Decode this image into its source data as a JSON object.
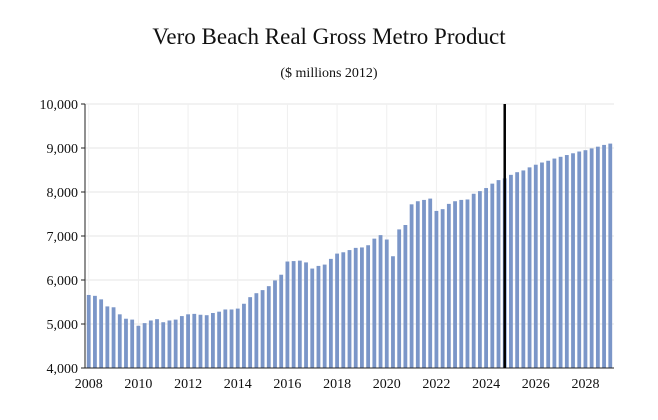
{
  "chart_data": {
    "type": "bar",
    "title": "Vero Beach Real Gross Metro Product",
    "subtitle": "($ millions 2012)",
    "xlabel": "",
    "ylabel": "",
    "ylim": [
      4000,
      10000
    ],
    "y_ticks": [
      4000,
      5000,
      6000,
      7000,
      8000,
      9000,
      10000
    ],
    "y_tick_labels": [
      "4,000",
      "5,000",
      "6,000",
      "7,000",
      "8,000",
      "9,000",
      "10,000"
    ],
    "x_tick_labels": [
      "2008",
      "2010",
      "2012",
      "2014",
      "2016",
      "2018",
      "2020",
      "2022",
      "2024",
      "2026",
      "2028"
    ],
    "x_start": 2008.0,
    "x_step": 0.25,
    "grid": true,
    "bar_color": "#7b96c8",
    "marker_line": {
      "x": 2024.75,
      "color": "#000000"
    },
    "values": [
      5660,
      5640,
      5560,
      5400,
      5380,
      5220,
      5120,
      5100,
      4960,
      5020,
      5080,
      5110,
      5040,
      5080,
      5100,
      5180,
      5220,
      5230,
      5210,
      5200,
      5250,
      5280,
      5330,
      5330,
      5350,
      5460,
      5610,
      5700,
      5770,
      5860,
      5990,
      6120,
      6420,
      6430,
      6440,
      6400,
      6260,
      6320,
      6350,
      6480,
      6600,
      6630,
      6680,
      6730,
      6740,
      6790,
      6940,
      7020,
      6920,
      6540,
      7150,
      7250,
      7720,
      7790,
      7820,
      7850,
      7570,
      7610,
      7730,
      7790,
      7820,
      7830,
      7960,
      8020,
      8090,
      8190,
      8270,
      8310,
      8390,
      8450,
      8490,
      8560,
      8620,
      8670,
      8710,
      8760,
      8800,
      8840,
      8880,
      8920,
      8950,
      8990,
      9030,
      9070,
      9100
    ]
  }
}
